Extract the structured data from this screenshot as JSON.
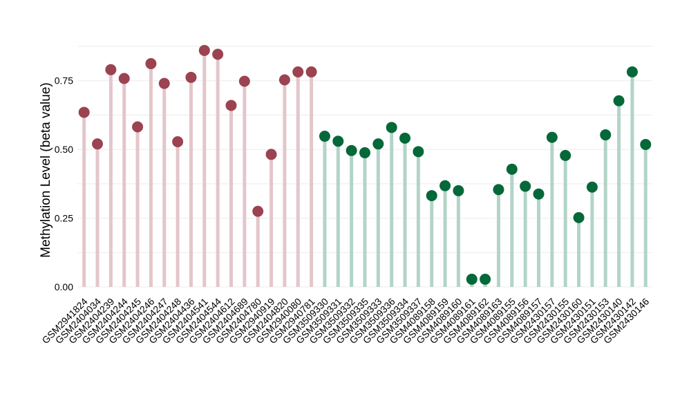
{
  "chart_data": {
    "type": "lollipop",
    "ylabel": "Methylation Level (beta value)",
    "ylim": [
      0,
      0.88
    ],
    "yticks": [
      "0.00",
      "0.25",
      "0.50",
      "0.75"
    ],
    "grid": true,
    "colors": {
      "group1_point": "#9b4350",
      "group1_stem": "#e3c6cb",
      "group2_point": "#056839",
      "group2_stem": "#b3d4c8"
    },
    "categories": [
      "GSM2941824",
      "GSM2404034",
      "GSM2404239",
      "GSM2404244",
      "GSM2404245",
      "GSM2404246",
      "GSM2404247",
      "GSM2404248",
      "GSM2404436",
      "GSM2404541",
      "GSM2404544",
      "GSM2404612",
      "GSM2404689",
      "GSM2404780",
      "GSM2940919",
      "GSM2404820",
      "GSM2940080",
      "GSM2940781",
      "GSM3509330",
      "GSM3509331",
      "GSM3509332",
      "GSM3509335",
      "GSM3509333",
      "GSM3509336",
      "GSM3509334",
      "GSM3509337",
      "GSM4089158",
      "GSM4089159",
      "GSM4089160",
      "GSM4089161",
      "GSM4089162",
      "GSM4089163",
      "GSM4089155",
      "GSM4089156",
      "GSM4089157",
      "GSM2430157",
      "GSM2430155",
      "GSM2430160",
      "GSM2430151",
      "GSM2430153",
      "GSM2430140",
      "GSM2430142",
      "GSM2430146"
    ],
    "values": [
      0.635,
      0.52,
      0.79,
      0.758,
      0.582,
      0.812,
      0.74,
      0.528,
      0.762,
      0.86,
      0.846,
      0.66,
      0.748,
      0.275,
      0.482,
      0.753,
      0.782,
      0.782,
      0.548,
      0.53,
      0.496,
      0.488,
      0.52,
      0.58,
      0.541,
      0.492,
      0.332,
      0.368,
      0.35,
      0.028,
      0.028,
      0.354,
      0.428,
      0.366,
      0.338,
      0.544,
      0.478,
      0.252,
      0.363,
      0.553,
      0.677,
      0.782,
      0.518
    ],
    "groups": [
      1,
      1,
      1,
      1,
      1,
      1,
      1,
      1,
      1,
      1,
      1,
      1,
      1,
      1,
      1,
      1,
      1,
      1,
      2,
      2,
      2,
      2,
      2,
      2,
      2,
      2,
      2,
      2,
      2,
      2,
      2,
      2,
      2,
      2,
      2,
      2,
      2,
      2,
      2,
      2,
      2,
      2,
      2
    ]
  }
}
